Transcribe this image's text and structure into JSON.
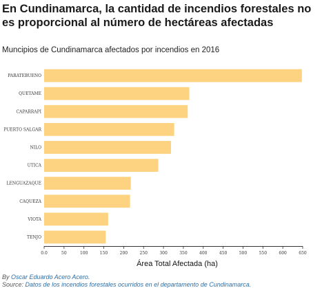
{
  "header": {
    "title": "En Cundinamarca, la cantidad de incendios forestales no es proporcional al número de hectáreas afectadas",
    "subtitle": "Muncipios de Cundinamarca afectados por incendios en 2016"
  },
  "footer": {
    "by_label": "By",
    "author": "Oscar Eduardo Acero Acero.",
    "source_label": "Source:",
    "source_text": "Datos de los incendios forestales ocurridos en el departamento de Cundinamarca."
  },
  "colors": {
    "bar": "#fdd382",
    "axis": "#333333",
    "text": "#333333"
  },
  "chart_data": {
    "type": "bar",
    "orientation": "horizontal",
    "categories": [
      "PARATEBUENO",
      "QUETAME",
      "CAPARRAPI",
      "PUERTO SALGAR",
      "NILO",
      "UTICA",
      "LENGUAZAQUE",
      "CAQUEZA",
      "VIOTA",
      "TENJO"
    ],
    "values": [
      648,
      365,
      361,
      327,
      319,
      287,
      218,
      216,
      161,
      155
    ],
    "xlabel": "Área Total Afectada (ha)",
    "ylabel": "",
    "xlim": [
      0,
      650
    ],
    "xticks": [
      "0.0",
      "50",
      "100",
      "150",
      "200",
      "250",
      "300",
      "350",
      "400",
      "450",
      "500",
      "550",
      "600",
      "650"
    ],
    "grid": false,
    "legend": "none"
  }
}
